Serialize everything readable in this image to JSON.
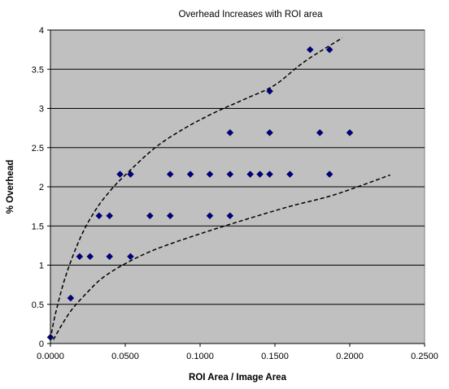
{
  "chart_data": {
    "type": "scatter",
    "title": "Overhead Increases with ROI area",
    "xlabel": "ROI Area / Image Area",
    "ylabel": "% Overhead",
    "xlim": [
      0,
      0.25
    ],
    "ylim": [
      0,
      4
    ],
    "x_tick_labels": [
      "0.0000",
      "0.0500",
      "0.1000",
      "0.1500",
      "0.2000",
      "0.2500"
    ],
    "y_tick_labels": [
      "0",
      "0.5",
      "1",
      "1.5",
      "2",
      "2.5",
      "3",
      "3.5",
      "4"
    ],
    "plot_background": "#c0c0c0",
    "marker_color": "#000080",
    "grid": "horizontal",
    "legend": "none",
    "points": [
      {
        "x": 0.0,
        "y": 0.08
      },
      {
        "x": 0.0135,
        "y": 0.58
      },
      {
        "x": 0.0195,
        "y": 1.11
      },
      {
        "x": 0.0265,
        "y": 1.11
      },
      {
        "x": 0.0325,
        "y": 1.63
      },
      {
        "x": 0.0395,
        "y": 1.63
      },
      {
        "x": 0.0395,
        "y": 1.11
      },
      {
        "x": 0.0465,
        "y": 2.16
      },
      {
        "x": 0.0535,
        "y": 2.16
      },
      {
        "x": 0.0535,
        "y": 1.11
      },
      {
        "x": 0.0665,
        "y": 1.63
      },
      {
        "x": 0.08,
        "y": 2.16
      },
      {
        "x": 0.08,
        "y": 1.63
      },
      {
        "x": 0.0935,
        "y": 2.16
      },
      {
        "x": 0.1065,
        "y": 2.16
      },
      {
        "x": 0.1065,
        "y": 1.63
      },
      {
        "x": 0.12,
        "y": 2.69
      },
      {
        "x": 0.12,
        "y": 2.16
      },
      {
        "x": 0.12,
        "y": 1.63
      },
      {
        "x": 0.1335,
        "y": 2.16
      },
      {
        "x": 0.14,
        "y": 2.16
      },
      {
        "x": 0.1465,
        "y": 3.22
      },
      {
        "x": 0.1465,
        "y": 2.69
      },
      {
        "x": 0.1465,
        "y": 2.16
      },
      {
        "x": 0.16,
        "y": 2.16
      },
      {
        "x": 0.1735,
        "y": 3.75
      },
      {
        "x": 0.18,
        "y": 2.69
      },
      {
        "x": 0.1865,
        "y": 3.75
      },
      {
        "x": 0.1865,
        "y": 2.16
      },
      {
        "x": 0.2,
        "y": 2.69
      }
    ],
    "bounds": [
      {
        "style": "dashed",
        "points": [
          [
            0.0,
            0.05
          ],
          [
            0.003,
            0.35
          ],
          [
            0.01,
            0.85
          ],
          [
            0.02,
            1.35
          ],
          [
            0.03,
            1.7
          ],
          [
            0.04,
            1.95
          ],
          [
            0.05,
            2.15
          ],
          [
            0.07,
            2.5
          ],
          [
            0.09,
            2.75
          ],
          [
            0.11,
            2.95
          ],
          [
            0.13,
            3.12
          ],
          [
            0.15,
            3.3
          ],
          [
            0.17,
            3.6
          ],
          [
            0.195,
            3.9
          ]
        ]
      },
      {
        "style": "dashed",
        "points": [
          [
            0.002,
            0.05
          ],
          [
            0.008,
            0.25
          ],
          [
            0.015,
            0.45
          ],
          [
            0.025,
            0.66
          ],
          [
            0.035,
            0.84
          ],
          [
            0.05,
            1.02
          ],
          [
            0.07,
            1.2
          ],
          [
            0.1,
            1.4
          ],
          [
            0.13,
            1.58
          ],
          [
            0.16,
            1.75
          ],
          [
            0.19,
            1.9
          ],
          [
            0.227,
            2.15
          ]
        ]
      }
    ]
  }
}
